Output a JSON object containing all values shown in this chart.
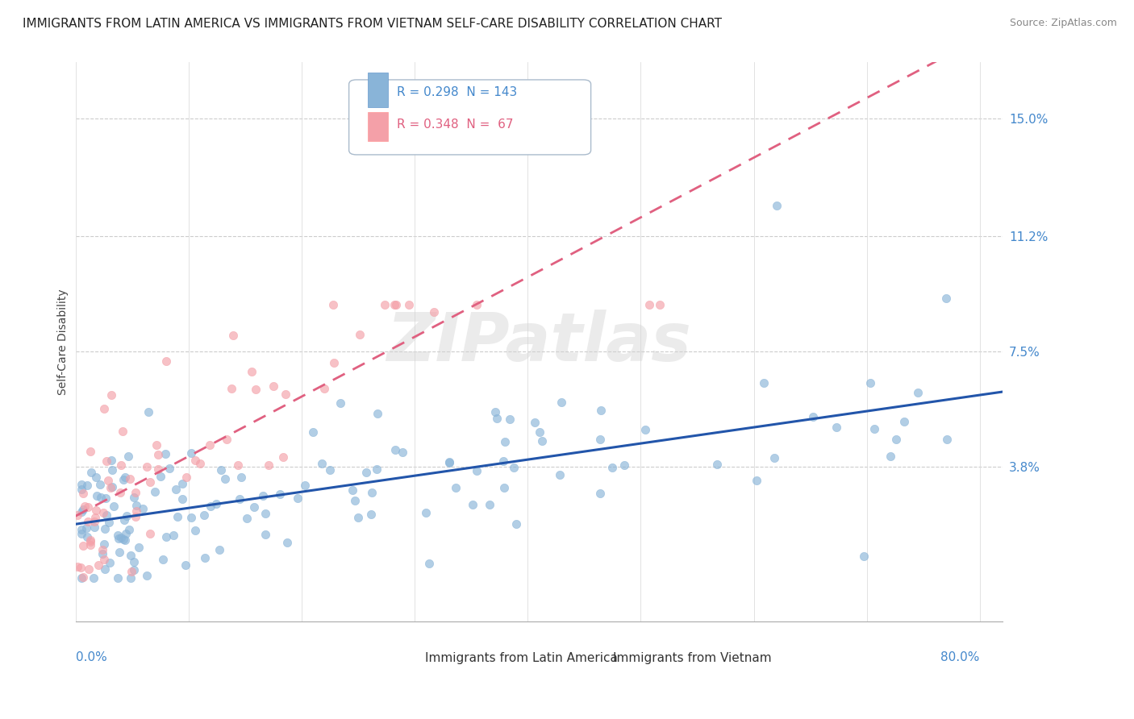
{
  "title": "IMMIGRANTS FROM LATIN AMERICA VS IMMIGRANTS FROM VIETNAM SELF-CARE DISABILITY CORRELATION CHART",
  "source": "Source: ZipAtlas.com",
  "ylabel": "Self-Care Disability",
  "ytick_labels": [
    "15.0%",
    "11.2%",
    "7.5%",
    "3.8%"
  ],
  "ytick_values": [
    0.15,
    0.112,
    0.075,
    0.038
  ],
  "xlim": [
    0.0,
    0.82
  ],
  "ylim": [
    -0.012,
    0.168
  ],
  "series1_name": "Immigrants from Latin America",
  "series1_color": "#89B4D8",
  "series1_line_color": "#2255AA",
  "series1_R": 0.298,
  "series1_N": 143,
  "series2_name": "Immigrants from Vietnam",
  "series2_color": "#F4A0A8",
  "series2_line_color": "#E06080",
  "series2_R": 0.348,
  "series2_N": 67,
  "title_fontsize": 11,
  "source_fontsize": 9,
  "tick_fontsize": 11,
  "ylabel_fontsize": 10,
  "legend_fontsize": 11
}
